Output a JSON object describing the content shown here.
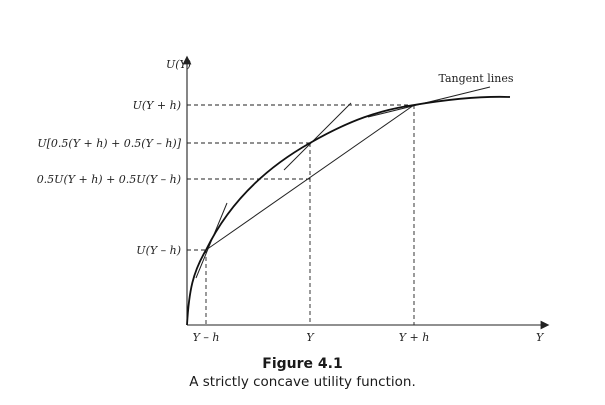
{
  "diagram": {
    "y_axis_label": "U(Y)",
    "x_axis_label": "Y",
    "tangent_label": "Tangent lines",
    "y_ticks": {
      "u_y_plus_h": "U(Y + h)",
      "u_mean": "U[0.5(Y + h) + 0.5(Y – h)]",
      "expected_u": "0.5U(Y + h) + 0.5U(Y – h)",
      "u_y_minus_h": "U(Y – h)"
    },
    "x_ticks": {
      "y_minus_h": "Y – h",
      "y": "Y",
      "y_plus_h": "Y + h"
    }
  },
  "caption": {
    "title": "Figure 4.1",
    "text": "A strictly concave utility function."
  }
}
